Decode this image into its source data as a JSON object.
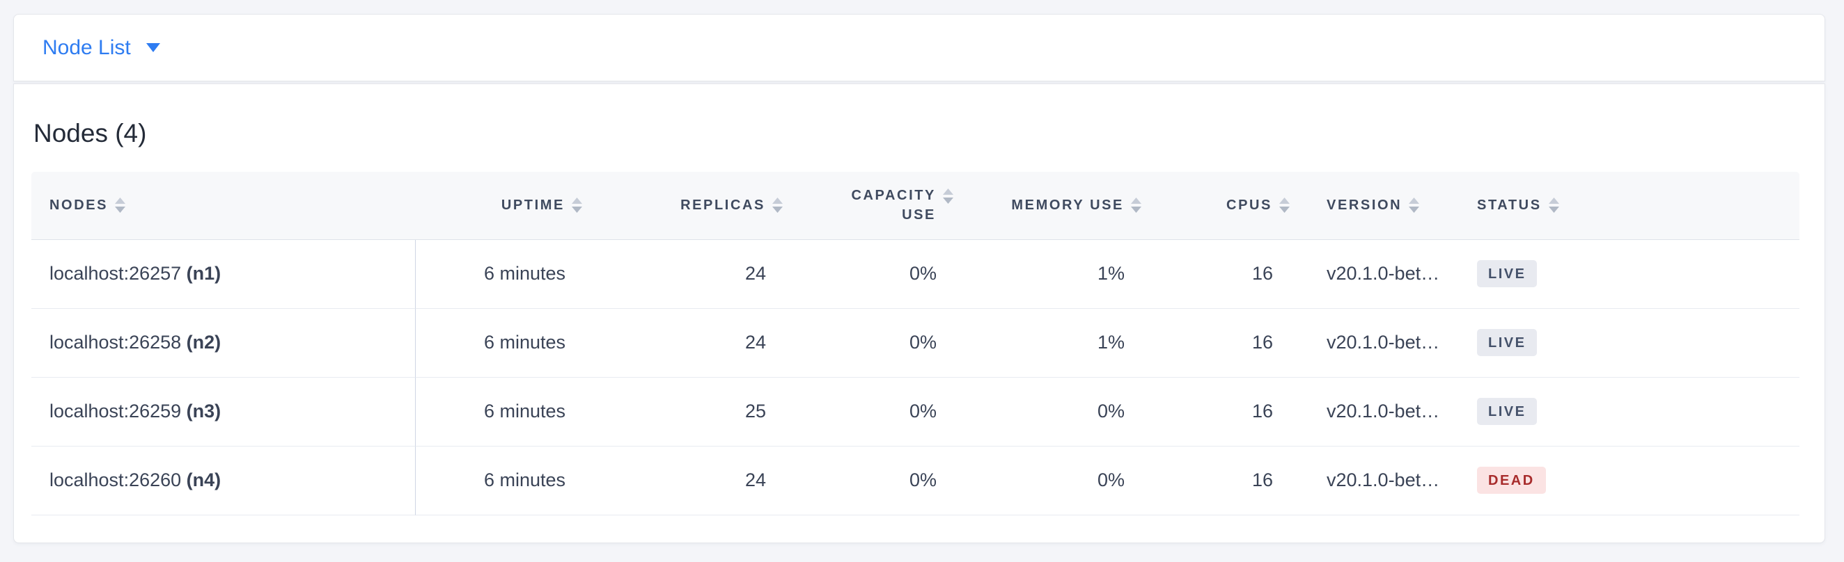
{
  "tabbar": {
    "items": [
      {
        "label": "Node List"
      }
    ]
  },
  "section": {
    "title": "Nodes (4)"
  },
  "table": {
    "columns": [
      {
        "key": "node",
        "label": "NODES"
      },
      {
        "key": "uptime",
        "label": "UPTIME"
      },
      {
        "key": "replicas",
        "label": "REPLICAS"
      },
      {
        "key": "capacity",
        "label": "CAPACITY USE"
      },
      {
        "key": "memory",
        "label": "MEMORY USE"
      },
      {
        "key": "cpus",
        "label": "CPUS"
      },
      {
        "key": "version",
        "label": "VERSION"
      },
      {
        "key": "status",
        "label": "STATUS"
      }
    ],
    "rows": [
      {
        "address": "localhost:26257",
        "id": "(n1)",
        "uptime": "6 minutes",
        "replicas": "24",
        "capacity": "0%",
        "memory": "1%",
        "cpus": "16",
        "version": "v20.1.0-bet…",
        "status": {
          "label": "LIVE",
          "kind": "live"
        }
      },
      {
        "address": "localhost:26258",
        "id": "(n2)",
        "uptime": "6 minutes",
        "replicas": "24",
        "capacity": "0%",
        "memory": "1%",
        "cpus": "16",
        "version": "v20.1.0-bet…",
        "status": {
          "label": "LIVE",
          "kind": "live"
        }
      },
      {
        "address": "localhost:26259",
        "id": "(n3)",
        "uptime": "6 minutes",
        "replicas": "25",
        "capacity": "0%",
        "memory": "0%",
        "cpus": "16",
        "version": "v20.1.0-bet…",
        "status": {
          "label": "LIVE",
          "kind": "live"
        }
      },
      {
        "address": "localhost:26260",
        "id": "(n4)",
        "uptime": "6 minutes",
        "replicas": "24",
        "capacity": "0%",
        "memory": "0%",
        "cpus": "16",
        "version": "v20.1.0-bet…",
        "status": {
          "label": "DEAD",
          "kind": "dead"
        }
      }
    ]
  },
  "icons": {
    "tab_caret": "caret-down-icon",
    "column_sort": "sort-icon"
  },
  "colors": {
    "accent_blue": "#2e7cf1",
    "page_bg": "#f4f5f9",
    "header_bg": "#f7f8fa",
    "header_text": "#3f4a5f",
    "body_text": "#3a4356",
    "live_bg": "#e8eaf0",
    "live_text": "#44516a",
    "dead_bg": "#fbe3e3",
    "dead_text": "#a82c2c"
  }
}
